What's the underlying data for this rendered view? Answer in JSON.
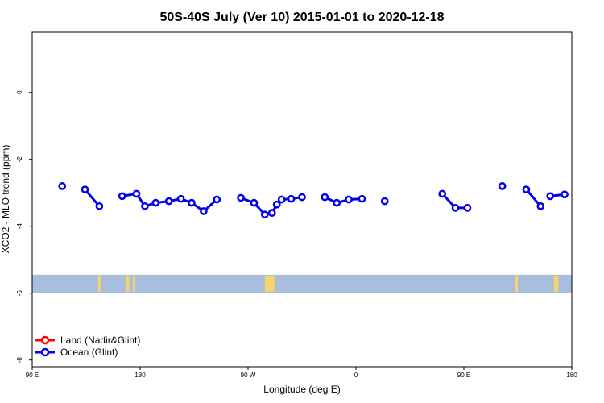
{
  "chart_data": {
    "type": "line",
    "title": "50S-40S July (Ver 10)   2015-01-01 to 2020-12-18",
    "xlabel": "Longitude (deg E)",
    "ylabel": "XCO2 - MLO trend (ppm)",
    "xlim": [
      90,
      540
    ],
    "ylim": [
      -8.2,
      1.8
    ],
    "x_ticks": [
      {
        "value": 90,
        "label": "90 E"
      },
      {
        "value": 180,
        "label": "180"
      },
      {
        "value": 270,
        "label": "90 W"
      },
      {
        "value": 360,
        "label": "0"
      },
      {
        "value": 450,
        "label": "90 E"
      },
      {
        "value": 540,
        "label": "180"
      }
    ],
    "y_ticks": [
      {
        "value": 0,
        "label": "0"
      },
      {
        "value": -2,
        "label": "-2"
      },
      {
        "value": -4,
        "label": "-4"
      },
      {
        "value": -6,
        "label": "-6"
      },
      {
        "value": -8,
        "label": "-8"
      }
    ],
    "legend": {
      "position": "bottom-left",
      "entries": [
        {
          "label": "Land (Nadir&Glint)",
          "color": "#ff0000"
        },
        {
          "label": "Ocean (Glint)",
          "color": "#0000ee"
        }
      ]
    },
    "series": [
      {
        "name": "Land (Nadir&Glint)",
        "color": "#ff0000",
        "segments": [
          [
            [
              290,
              -3.6
            ],
            [
              294,
              -3.35
            ]
          ]
        ]
      },
      {
        "name": "Ocean (Glint)",
        "color": "#0000ee",
        "segments": [
          [
            [
              115,
              -2.8
            ]
          ],
          [
            [
              134,
              -2.9
            ],
            [
              146,
              -3.4
            ]
          ],
          [
            [
              165,
              -3.1
            ],
            [
              177,
              -3.03
            ],
            [
              184,
              -3.4
            ],
            [
              193,
              -3.3
            ],
            [
              204,
              -3.25
            ],
            [
              214,
              -3.18
            ],
            [
              223,
              -3.3
            ],
            [
              233,
              -3.55
            ],
            [
              244,
              -3.2
            ]
          ],
          [
            [
              264,
              -3.15
            ],
            [
              275,
              -3.3
            ],
            [
              284,
              -3.65
            ],
            [
              290,
              -3.6
            ],
            [
              294,
              -3.35
            ],
            [
              298,
              -3.2
            ],
            [
              306,
              -3.18
            ],
            [
              315,
              -3.13
            ]
          ],
          [
            [
              334,
              -3.13
            ],
            [
              344,
              -3.3
            ],
            [
              354,
              -3.2
            ],
            [
              365,
              -3.18
            ]
          ],
          [
            [
              384,
              -3.25
            ]
          ],
          [
            [
              432,
              -3.03
            ],
            [
              443,
              -3.45
            ],
            [
              453,
              -3.45
            ]
          ],
          [
            [
              482,
              -2.8
            ]
          ],
          [
            [
              502,
              -2.9
            ],
            [
              514,
              -3.4
            ]
          ],
          [
            [
              522,
              -3.1
            ],
            [
              534,
              -3.05
            ]
          ]
        ]
      }
    ],
    "map_strip": {
      "y_range": [
        -6.0,
        -5.45
      ],
      "ocean_color": "#a8bede",
      "land_color": "#f5d46a",
      "land_x": [
        [
          145,
          147
        ],
        [
          168,
          171
        ],
        [
          174,
          176
        ],
        [
          284,
          292
        ],
        [
          493,
          495
        ],
        [
          525,
          529
        ]
      ]
    }
  }
}
